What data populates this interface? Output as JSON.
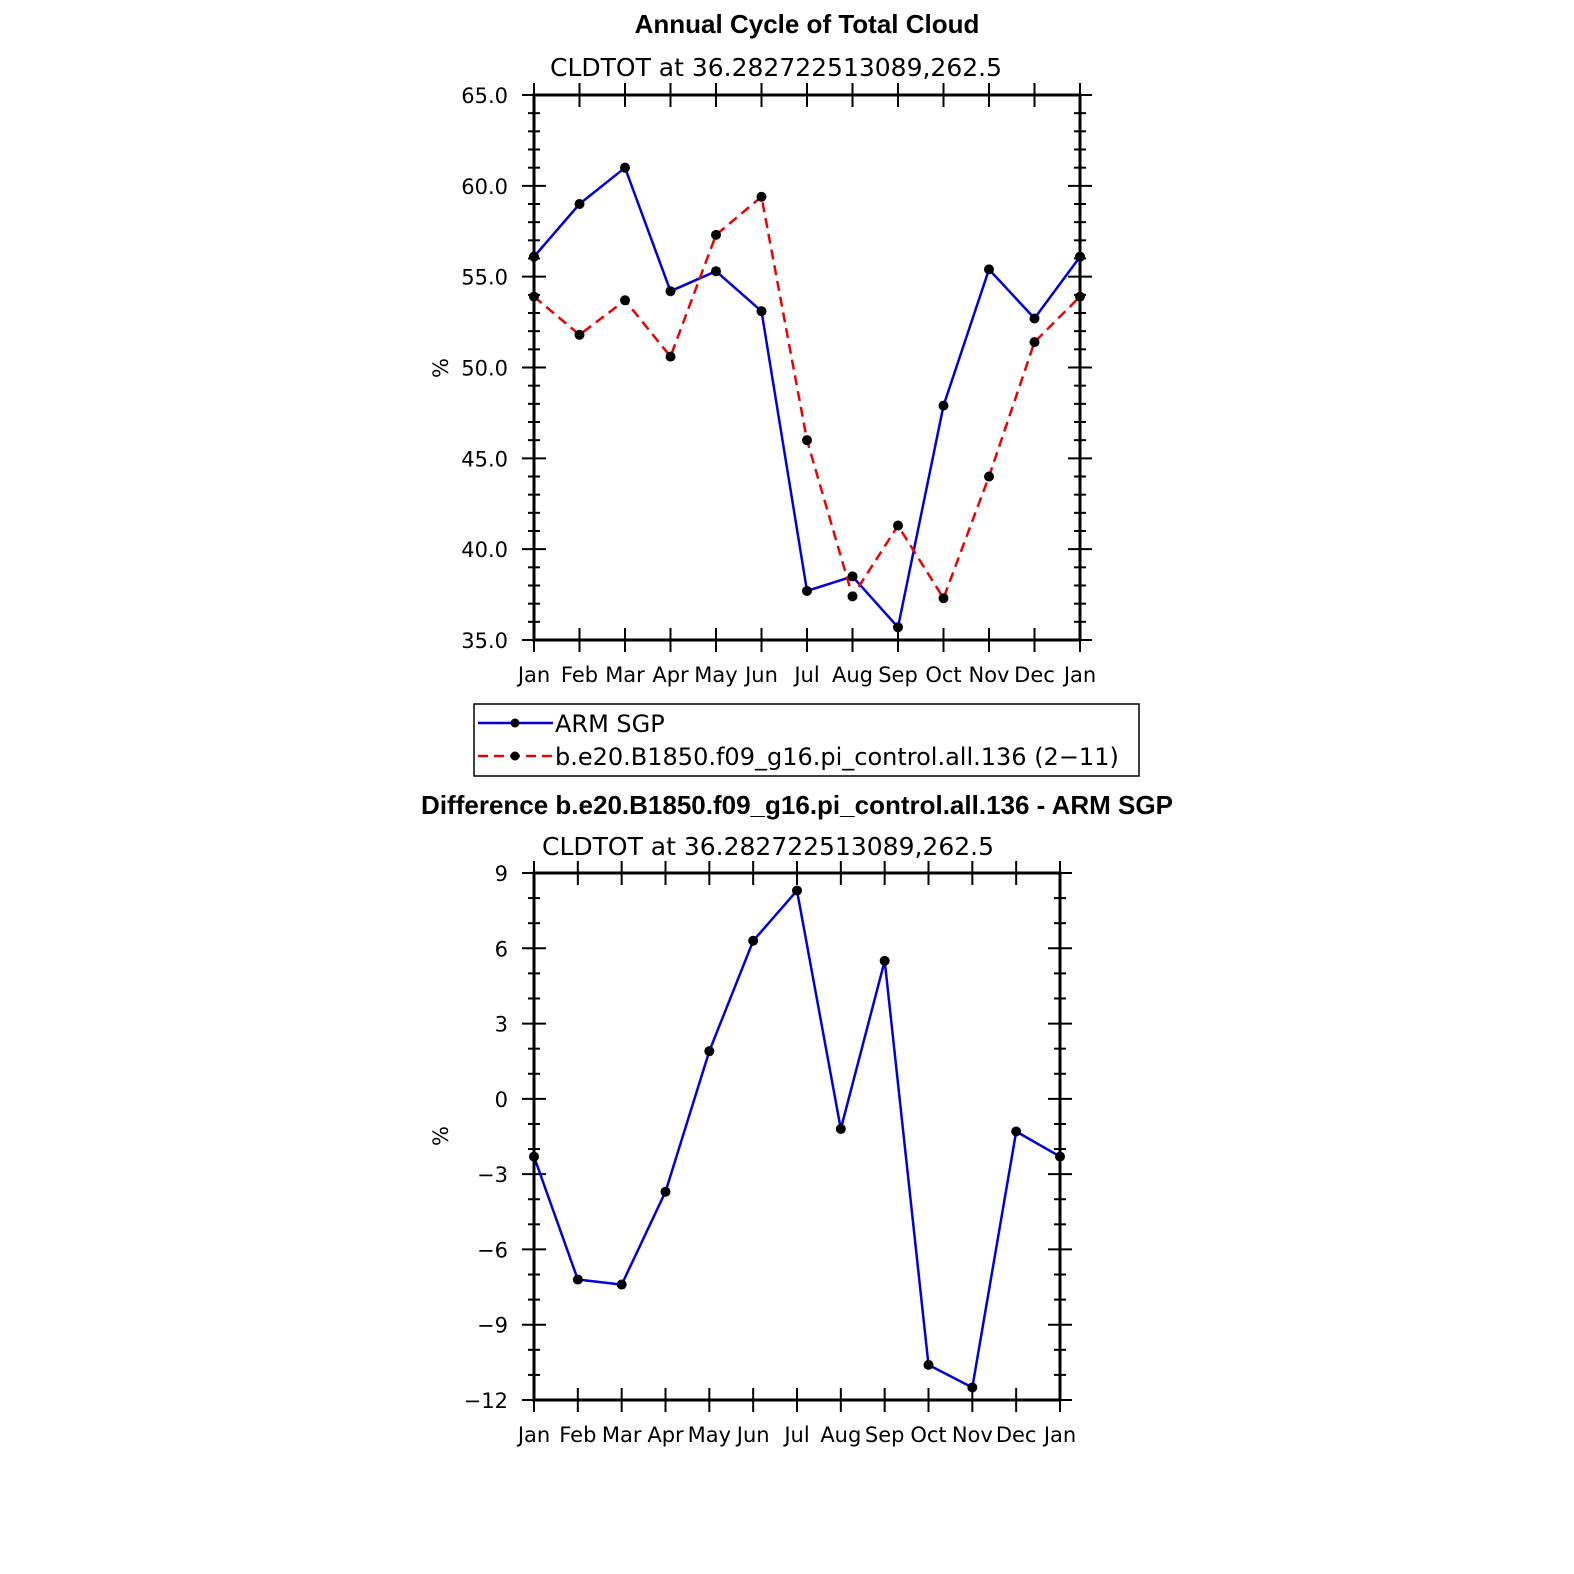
{
  "chart_data": [
    {
      "type": "line",
      "title": "Annual Cycle of Total Cloud",
      "subtitle": "CLDTOT at 36.282722513089,262.5",
      "ylabel": "%",
      "xlabel": "",
      "ylim": [
        35.0,
        65.0
      ],
      "yticks": [
        35.0,
        40.0,
        45.0,
        50.0,
        55.0,
        60.0,
        65.0
      ],
      "ytick_labels": [
        "35.0",
        "40.0",
        "45.0",
        "50.0",
        "55.0",
        "60.0",
        "65.0"
      ],
      "categories": [
        "Jan",
        "Feb",
        "Mar",
        "Apr",
        "May",
        "Jun",
        "Jul",
        "Aug",
        "Sep",
        "Oct",
        "Nov",
        "Dec",
        "Jan"
      ],
      "series": [
        {
          "name": "ARM SGP",
          "color": "#0000dd",
          "dash": "solid",
          "values": [
            56.1,
            59.0,
            61.0,
            54.2,
            55.3,
            53.1,
            37.7,
            38.5,
            35.7,
            47.9,
            55.4,
            52.7,
            56.1
          ]
        },
        {
          "name": "b.e20.B1850.f09_g16.pi_control.all.136 (2−11)",
          "color": "#ee0000",
          "dash": "dashed",
          "values": [
            53.9,
            51.8,
            53.7,
            50.6,
            57.3,
            59.4,
            46.0,
            37.4,
            41.3,
            37.3,
            44.0,
            51.4,
            53.9
          ]
        }
      ],
      "legend": "below"
    },
    {
      "type": "line",
      "title": "Difference b.e20.B1850.f09_g16.pi_control.all.136 - ARM SGP",
      "subtitle": "CLDTOT at 36.282722513089,262.5",
      "ylabel": "%",
      "xlabel": "",
      "ylim": [
        -12,
        9
      ],
      "yticks": [
        -12,
        -9,
        -6,
        -3,
        0,
        3,
        6,
        9
      ],
      "ytick_labels": [
        "−12",
        "−9",
        "−6",
        "−3",
        "0",
        "3",
        "6",
        "9"
      ],
      "categories": [
        "Jan",
        "Feb",
        "Mar",
        "Apr",
        "May",
        "Jun",
        "Jul",
        "Aug",
        "Sep",
        "Oct",
        "Nov",
        "Dec",
        "Jan"
      ],
      "series": [
        {
          "name": "Difference",
          "color": "#0000dd",
          "dash": "solid",
          "values": [
            -2.3,
            -7.2,
            -7.4,
            -3.7,
            1.9,
            6.3,
            8.3,
            -1.2,
            5.5,
            -10.6,
            -11.5,
            -1.3,
            -2.3
          ]
        }
      ]
    }
  ]
}
